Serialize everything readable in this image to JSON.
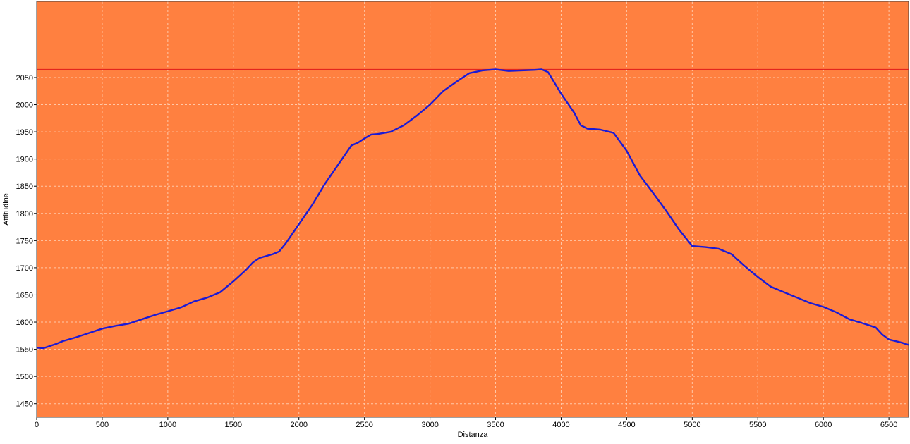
{
  "chart_data": {
    "type": "line",
    "title": "",
    "xlabel": "Distanza",
    "ylabel": "Attitudine",
    "xlim": [
      0,
      6650
    ],
    "ylim": [
      1425,
      2190
    ],
    "x_ticks": [
      0,
      500,
      1000,
      1500,
      2000,
      2500,
      3000,
      3500,
      4000,
      4500,
      5000,
      5500,
      6000,
      6500
    ],
    "y_ticks": [
      1450,
      1500,
      1550,
      1600,
      1650,
      1700,
      1750,
      1800,
      1850,
      1900,
      1950,
      2000,
      2050
    ],
    "grid": true,
    "reference_line": {
      "y": 2065,
      "color": "#e01818"
    },
    "colors": {
      "plot_background": "#ff8040",
      "line": "#1a1ad6",
      "grid": "#ffc8a8"
    },
    "series": [
      {
        "name": "",
        "x": [
          0,
          50,
          100,
          150,
          200,
          300,
          400,
          500,
          600,
          700,
          800,
          900,
          1000,
          1100,
          1200,
          1300,
          1400,
          1500,
          1600,
          1650,
          1700,
          1800,
          1850,
          1900,
          2000,
          2100,
          2200,
          2300,
          2400,
          2450,
          2500,
          2550,
          2600,
          2700,
          2800,
          2900,
          3000,
          3100,
          3200,
          3300,
          3400,
          3500,
          3600,
          3700,
          3800,
          3850,
          3900,
          4000,
          4100,
          4150,
          4200,
          4300,
          4400,
          4500,
          4600,
          4700,
          4800,
          4900,
          5000,
          5100,
          5200,
          5300,
          5400,
          5500,
          5600,
          5700,
          5800,
          5900,
          6000,
          6100,
          6200,
          6300,
          6400,
          6450,
          6500,
          6600,
          6650
        ],
        "y": [
          1553,
          1552,
          1556,
          1560,
          1565,
          1572,
          1580,
          1588,
          1593,
          1597,
          1605,
          1613,
          1620,
          1627,
          1638,
          1645,
          1655,
          1675,
          1697,
          1710,
          1718,
          1725,
          1730,
          1745,
          1780,
          1815,
          1855,
          1890,
          1925,
          1930,
          1938,
          1945,
          1946,
          1950,
          1962,
          1980,
          2000,
          2025,
          2042,
          2058,
          2063,
          2065,
          2062,
          2063,
          2064,
          2065,
          2060,
          2020,
          1985,
          1962,
          1956,
          1954,
          1948,
          1915,
          1870,
          1838,
          1805,
          1770,
          1740,
          1738,
          1735,
          1725,
          1703,
          1683,
          1665,
          1655,
          1645,
          1635,
          1628,
          1618,
          1605,
          1598,
          1590,
          1577,
          1568,
          1562,
          1558
        ]
      }
    ]
  }
}
